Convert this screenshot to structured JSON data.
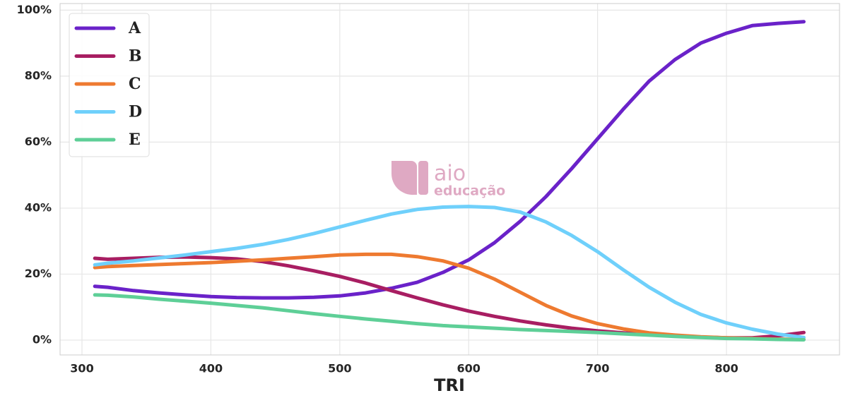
{
  "chart_data": {
    "type": "line",
    "xlabel": "TRI",
    "watermark": "aio",
    "watermark_sub": "educação",
    "x": [
      310,
      320,
      340,
      360,
      380,
      400,
      420,
      440,
      460,
      480,
      500,
      520,
      540,
      560,
      580,
      600,
      620,
      640,
      660,
      680,
      700,
      720,
      740,
      760,
      780,
      800,
      820,
      840,
      860
    ],
    "series": [
      {
        "name": "A",
        "color": "#6a22c9",
        "values": [
          16.3,
          16,
          15,
          14.3,
          13.7,
          13.2,
          12.9,
          12.8,
          12.8,
          13,
          13.4,
          14.3,
          15.7,
          17.5,
          20.5,
          24.3,
          29.5,
          36,
          43.5,
          52,
          61,
          70,
          78.5,
          85,
          90,
          93,
          95.3,
          96,
          96.5
        ]
      },
      {
        "name": "B",
        "color": "#a81e62",
        "values": [
          24.8,
          24.5,
          24.8,
          25.1,
          25.2,
          25,
          24.6,
          23.8,
          22.5,
          21,
          19.3,
          17.3,
          15,
          12.8,
          10.7,
          8.8,
          7.2,
          5.8,
          4.6,
          3.6,
          2.8,
          2.2,
          1.7,
          1.2,
          0.9,
          0.7,
          0.7,
          1.3,
          2.3
        ]
      },
      {
        "name": "C",
        "color": "#ee7a30",
        "values": [
          22,
          22.3,
          22.6,
          22.9,
          23.2,
          23.5,
          23.9,
          24.3,
          24.8,
          25.3,
          25.8,
          26,
          26,
          25.3,
          24,
          21.8,
          18.5,
          14.5,
          10.5,
          7.3,
          5,
          3.4,
          2.2,
          1.5,
          1,
          0.7,
          0.5,
          0.3,
          0.2
        ]
      },
      {
        "name": "D",
        "color": "#6fd0fb",
        "values": [
          22.8,
          23.3,
          24,
          24.9,
          25.8,
          26.8,
          27.8,
          29,
          30.5,
          32.3,
          34.3,
          36.3,
          38.2,
          39.6,
          40.3,
          40.5,
          40.2,
          38.8,
          35.8,
          31.7,
          26.8,
          21.3,
          16,
          11.5,
          7.8,
          5.2,
          3.3,
          1.8,
          0.8
        ]
      },
      {
        "name": "E",
        "color": "#5ecf97",
        "values": [
          13.7,
          13.6,
          13.1,
          12.4,
          11.8,
          11.2,
          10.5,
          9.8,
          8.9,
          8,
          7.2,
          6.4,
          5.7,
          5,
          4.4,
          4,
          3.6,
          3.2,
          2.9,
          2.6,
          2.3,
          1.9,
          1.5,
          1.1,
          0.8,
          0.5,
          0.4,
          0.2,
          0.1
        ]
      }
    ],
    "xlim": [
      283,
      887.7
    ],
    "xticks": [
      300,
      400,
      500,
      600,
      700,
      800
    ],
    "ylim": [
      -4.5,
      102
    ],
    "yticks": [
      {
        "value": 0,
        "label": "0%"
      },
      {
        "value": 20,
        "label": "20%"
      },
      {
        "value": 40,
        "label": "40%"
      },
      {
        "value": 60,
        "label": "60%"
      },
      {
        "value": 80,
        "label": "80%"
      },
      {
        "value": 100,
        "label": "100%"
      }
    ],
    "grid": true,
    "legend": "upper-left"
  }
}
